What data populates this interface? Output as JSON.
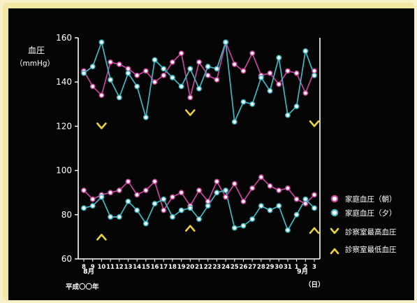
{
  "chart_data": {
    "type": "line",
    "ylabel": "血圧",
    "yunit": "（mmHg）",
    "ylim": [
      60,
      160
    ],
    "yticks": [
      60,
      80,
      100,
      120,
      140,
      160
    ],
    "x": [
      8,
      9,
      10,
      11,
      12,
      13,
      14,
      15,
      16,
      17,
      18,
      19,
      20,
      21,
      22,
      23,
      24,
      25,
      26,
      27,
      28,
      29,
      30,
      31,
      1,
      2,
      3
    ],
    "x_labels": [
      "8",
      "9",
      "10",
      "11",
      "12",
      "13",
      "14",
      "15",
      "16",
      "17",
      "18",
      "19",
      "20",
      "21",
      "22",
      "23",
      "24",
      "25",
      "26",
      "27",
      "28",
      "29",
      "30",
      "31",
      "1",
      "2",
      "3"
    ],
    "month_start": "8月",
    "month_end": "9月",
    "era_label": "平成〇〇年",
    "day_label": "（日）",
    "colors": {
      "morning": "#c8439b",
      "evening": "#3fb8c4",
      "clinic": "#e8d23a"
    },
    "series": [
      {
        "name": "家庭血圧（朝）",
        "group": "systolic",
        "color": "#c8439b",
        "values": [
          145,
          138,
          134,
          149,
          148,
          146,
          143,
          145,
          140,
          143,
          149,
          153,
          133,
          149,
          143,
          141,
          158,
          148,
          145,
          153,
          143,
          144,
          139,
          145,
          144,
          135,
          145
        ]
      },
      {
        "name": "家庭血圧（夕）",
        "group": "systolic",
        "color": "#3fb8c4",
        "values": [
          144,
          147,
          158,
          141,
          133,
          144,
          138,
          124,
          150,
          146,
          142,
          138,
          146,
          137,
          147,
          146,
          158,
          122,
          131,
          130,
          142,
          136,
          151,
          125,
          129,
          154,
          143
        ]
      },
      {
        "name": "家庭血圧（朝）",
        "group": "diastolic",
        "color": "#c8439b",
        "values": [
          91,
          87,
          89,
          90,
          91,
          95,
          89,
          91,
          95,
          82,
          88,
          90,
          84,
          91,
          86,
          95,
          88,
          94,
          86,
          92,
          97,
          93,
          91,
          92,
          87,
          85,
          89
        ]
      },
      {
        "name": "家庭血圧（夕）",
        "group": "diastolic",
        "color": "#3fb8c4",
        "values": [
          83,
          84,
          88,
          79,
          79,
          86,
          82,
          76,
          85,
          87,
          79,
          82,
          83,
          78,
          84,
          90,
          91,
          74,
          75,
          78,
          84,
          82,
          84,
          73,
          80,
          87,
          83
        ]
      }
    ],
    "clinic_high": {
      "name": "診察室最高血圧",
      "points": [
        [
          10,
          120
        ],
        [
          20,
          126
        ],
        [
          3,
          121
        ]
      ]
    },
    "clinic_low": {
      "name": "診察室最低血圧",
      "points": [
        [
          10,
          70
        ],
        [
          20,
          74
        ],
        [
          3,
          73
        ]
      ]
    }
  },
  "legend": {
    "morning": "家庭血圧（朝）",
    "evening": "家庭血圧（夕）",
    "clinic_high": "診察室最高血圧",
    "clinic_low": "診察室最低血圧"
  }
}
